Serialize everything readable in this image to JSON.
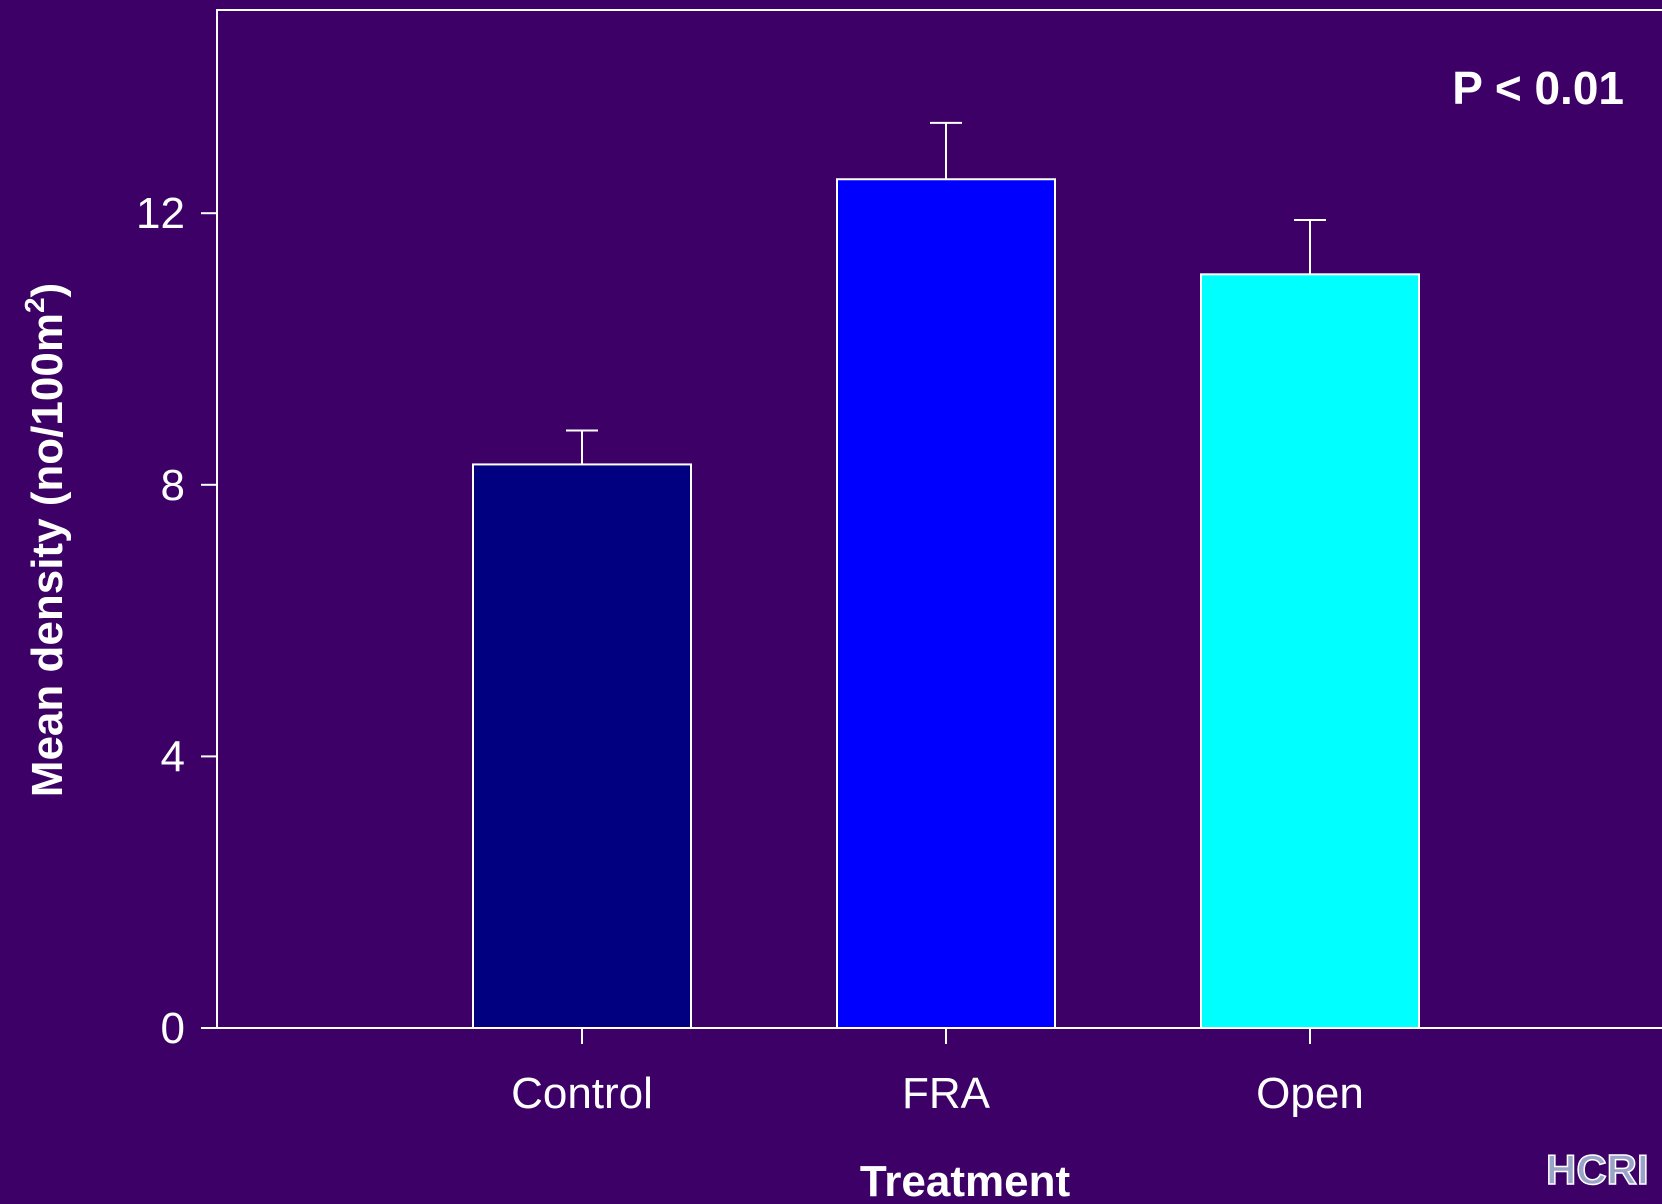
{
  "chart_data": {
    "type": "bar",
    "categories": [
      "Control",
      "FRA",
      "Open"
    ],
    "values": [
      8.3,
      12.5,
      11.1
    ],
    "errors": [
      0.5,
      0.83,
      0.8
    ],
    "colors": [
      "#000080",
      "#0000ff",
      "#00ffff"
    ],
    "xlabel": "Treatment",
    "ylabel": "Mean density (no/100m",
    "ylabel_sup": "2",
    "ylabel_close": ")",
    "ylim": [
      0,
      15
    ],
    "yticks": [
      "0",
      "4",
      "8",
      "12"
    ],
    "ytick_values": [
      0,
      4,
      8,
      12
    ],
    "annotation": "P < 0.01",
    "grid": false,
    "background": "#3d0066",
    "axis_color": "#ffffff"
  },
  "logo_text": "HCRI"
}
